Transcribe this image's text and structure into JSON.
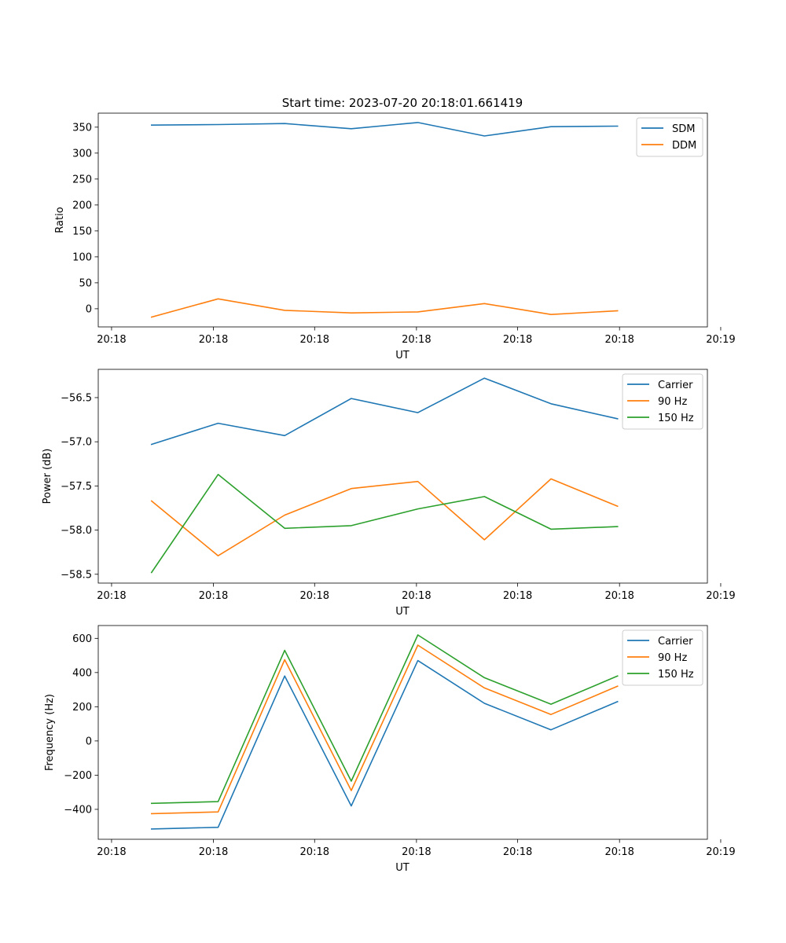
{
  "figure": {
    "title": "Start time: 2023-07-20 20:18:01.661419"
  },
  "colors": {
    "c0": "#1f77b4",
    "c1": "#ff7f0e",
    "c2": "#2ca02c"
  },
  "chart_data": [
    {
      "type": "line",
      "title": "Start time: 2023-07-20 20:18:01.661419",
      "xlabel": "UT",
      "ylabel": "Ratio",
      "x": [
        1,
        2,
        3,
        4,
        5,
        6,
        7,
        8
      ],
      "xlim": [
        0.2,
        9.35
      ],
      "xticks": [
        0.4,
        1.93,
        3.45,
        4.98,
        6.5,
        8.03,
        9.55
      ],
      "xtick_labels": [
        "20:18",
        "20:18",
        "20:18",
        "20:18",
        "20:18",
        "20:18",
        "20:19"
      ],
      "ylim": [
        -35,
        377
      ],
      "yticks": [
        0,
        50,
        100,
        150,
        200,
        250,
        300,
        350
      ],
      "ytick_labels": [
        "0",
        "50",
        "100",
        "150",
        "200",
        "250",
        "300",
        "350"
      ],
      "legend_position": "upper right",
      "series": [
        {
          "name": "SDM",
          "color_key": "c0",
          "values": [
            354,
            355,
            357,
            347,
            359,
            333,
            351,
            352
          ]
        },
        {
          "name": "DDM",
          "color_key": "c1",
          "values": [
            -16,
            19,
            -3,
            -8,
            -6,
            10,
            -11,
            -4
          ]
        }
      ]
    },
    {
      "type": "line",
      "title": "",
      "xlabel": "UT",
      "ylabel": "Power (dB)",
      "x": [
        1,
        2,
        3,
        4,
        5,
        6,
        7,
        8
      ],
      "xlim": [
        0.2,
        9.35
      ],
      "xticks": [
        0.4,
        1.93,
        3.45,
        4.98,
        6.5,
        8.03,
        9.55
      ],
      "xtick_labels": [
        "20:18",
        "20:18",
        "20:18",
        "20:18",
        "20:18",
        "20:18",
        "20:19"
      ],
      "ylim": [
        -58.6,
        -56.18
      ],
      "yticks": [
        -58.5,
        -58.0,
        -57.5,
        -57.0,
        -56.5
      ],
      "ytick_labels": [
        "−58.5",
        "−58.0",
        "−57.5",
        "−57.0",
        "−56.5"
      ],
      "legend_position": "upper right",
      "series": [
        {
          "name": "Carrier",
          "color_key": "c0",
          "values": [
            -57.03,
            -56.79,
            -56.93,
            -56.51,
            -56.67,
            -56.28,
            -56.57,
            -56.74
          ]
        },
        {
          "name": "90 Hz",
          "color_key": "c1",
          "values": [
            -57.67,
            -58.29,
            -57.83,
            -57.53,
            -57.45,
            -58.11,
            -57.42,
            -57.73
          ]
        },
        {
          "name": "150 Hz",
          "color_key": "c2",
          "values": [
            -58.48,
            -57.37,
            -57.98,
            -57.95,
            -57.76,
            -57.62,
            -57.99,
            -57.96
          ]
        }
      ]
    },
    {
      "type": "line",
      "title": "",
      "xlabel": "UT",
      "ylabel": "Frequency (Hz)",
      "x": [
        1,
        2,
        3,
        4,
        5,
        6,
        7,
        8
      ],
      "xlim": [
        0.2,
        9.35
      ],
      "xticks": [
        0.4,
        1.93,
        3.45,
        4.98,
        6.5,
        8.03,
        9.55
      ],
      "xtick_labels": [
        "20:18",
        "20:18",
        "20:18",
        "20:18",
        "20:18",
        "20:18",
        "20:19"
      ],
      "ylim": [
        -575,
        675
      ],
      "yticks": [
        -400,
        -200,
        0,
        200,
        400,
        600
      ],
      "ytick_labels": [
        "−400",
        "−200",
        "0",
        "200",
        "400",
        "600"
      ],
      "legend_position": "upper right",
      "series": [
        {
          "name": "Carrier",
          "color_key": "c0",
          "values": [
            -515,
            -505,
            380,
            -380,
            470,
            220,
            65,
            230
          ]
        },
        {
          "name": "90 Hz",
          "color_key": "c1",
          "values": [
            -425,
            -415,
            475,
            -290,
            560,
            310,
            155,
            320
          ]
        },
        {
          "name": "150 Hz",
          "color_key": "c2",
          "values": [
            -365,
            -355,
            530,
            -235,
            620,
            370,
            215,
            380
          ]
        }
      ]
    }
  ]
}
